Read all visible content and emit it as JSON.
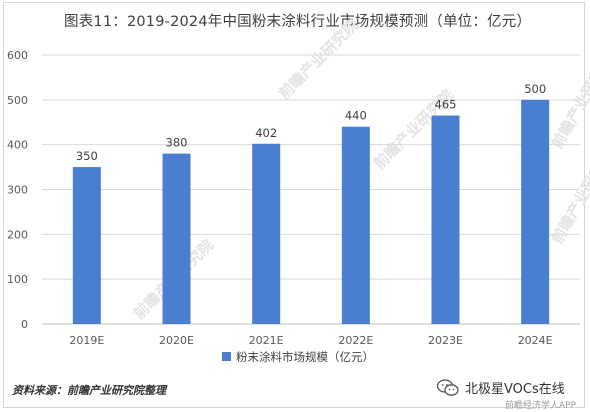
{
  "header": {
    "title": "图表11：2019-2024年中国粉末涂料行业市场规模预测（单位：亿元）"
  },
  "footer": {
    "source": "资料来源：前瞻产业研究院整理",
    "account": "北极星VOCs在线",
    "app_watermark": "前瞻经济学人APP"
  },
  "watermark": {
    "text": "前瞻产业研究院"
  },
  "colors": {
    "bar": "#4a7ed0",
    "grid": "#d9d9d9",
    "axis_text": "#595959",
    "label": "#404040"
  },
  "chart_data": {
    "type": "bar",
    "title": "图表11：2019-2024年中国粉末涂料行业市场规模预测（单位：亿元）",
    "categories": [
      "2019E",
      "2020E",
      "2021E",
      "2022E",
      "2023E",
      "2024E"
    ],
    "series": [
      {
        "name": "粉末涂料市场规模（亿元）",
        "values": [
          350,
          380,
          402,
          440,
          465,
          500
        ]
      }
    ],
    "ylim": [
      0,
      600
    ],
    "yticks": [
      0,
      100,
      200,
      300,
      400,
      500,
      600
    ],
    "grid": true,
    "legend_position": "bottom",
    "data_labels": true
  }
}
